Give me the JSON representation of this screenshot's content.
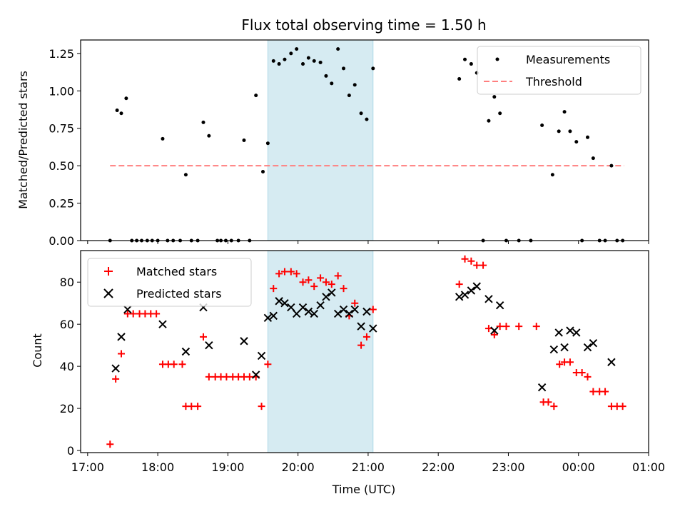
{
  "chart_data": [
    {
      "type": "scatter",
      "title": "Flux total observing time = 1.50 h",
      "xlabel": "",
      "ylabel": "Matched/Predicted stars",
      "x_unit": "hours since 17:00 UTC",
      "xlim": [
        -0.1,
        8.0
      ],
      "ylim": [
        0.0,
        1.34
      ],
      "yticks": [
        0.0,
        0.25,
        0.5,
        0.75,
        1.0,
        1.25
      ],
      "ytick_labels": [
        "0.00",
        "0.25",
        "0.50",
        "0.75",
        "1.00",
        "1.25"
      ],
      "shaded_span": [
        2.57,
        4.07
      ],
      "legend": {
        "placement": "top-right",
        "entries": [
          "Measurements",
          "Threshold"
        ]
      },
      "threshold": {
        "name": "Threshold",
        "y": 0.5,
        "x_range": [
          0.32,
          7.65
        ],
        "color": "#ff7f7f"
      },
      "series": [
        {
          "name": "Measurements",
          "color": "#000000",
          "points": [
            [
              0.32,
              0.0
            ],
            [
              0.42,
              0.87
            ],
            [
              0.48,
              0.85
            ],
            [
              0.55,
              0.95
            ],
            [
              0.63,
              0.0
            ],
            [
              0.7,
              0.0
            ],
            [
              0.77,
              0.0
            ],
            [
              0.85,
              0.0
            ],
            [
              0.92,
              0.0
            ],
            [
              1.0,
              0.0
            ],
            [
              1.07,
              0.68
            ],
            [
              1.14,
              0.0
            ],
            [
              1.22,
              0.0
            ],
            [
              1.32,
              0.0
            ],
            [
              1.4,
              0.44
            ],
            [
              1.48,
              0.0
            ],
            [
              1.57,
              0.0
            ],
            [
              1.65,
              0.79
            ],
            [
              1.73,
              0.7
            ],
            [
              1.85,
              0.0
            ],
            [
              1.9,
              0.0
            ],
            [
              1.97,
              0.0
            ],
            [
              2.05,
              0.0
            ],
            [
              2.15,
              0.0
            ],
            [
              2.23,
              0.67
            ],
            [
              2.31,
              0.0
            ],
            [
              2.4,
              0.97
            ],
            [
              2.5,
              0.46
            ],
            [
              2.57,
              0.65
            ],
            [
              2.65,
              1.2
            ],
            [
              2.73,
              1.18
            ],
            [
              2.81,
              1.21
            ],
            [
              2.9,
              1.25
            ],
            [
              2.98,
              1.28
            ],
            [
              3.07,
              1.18
            ],
            [
              3.15,
              1.22
            ],
            [
              3.23,
              1.2
            ],
            [
              3.32,
              1.19
            ],
            [
              3.4,
              1.1
            ],
            [
              3.48,
              1.05
            ],
            [
              3.57,
              1.28
            ],
            [
              3.65,
              1.15
            ],
            [
              3.73,
              0.97
            ],
            [
              3.81,
              1.04
            ],
            [
              3.9,
              0.85
            ],
            [
              3.98,
              0.81
            ],
            [
              4.07,
              1.15
            ],
            [
              5.3,
              1.08
            ],
            [
              5.38,
              1.21
            ],
            [
              5.47,
              1.18
            ],
            [
              5.55,
              1.12
            ],
            [
              5.64,
              0.0
            ],
            [
              5.72,
              0.8
            ],
            [
              5.8,
              0.96
            ],
            [
              5.88,
              0.85
            ],
            [
              5.97,
              0.0
            ],
            [
              6.15,
              0.0
            ],
            [
              6.32,
              0.0
            ],
            [
              6.48,
              0.77
            ],
            [
              6.63,
              0.44
            ],
            [
              6.72,
              0.73
            ],
            [
              6.8,
              0.86
            ],
            [
              6.88,
              0.73
            ],
            [
              6.97,
              0.66
            ],
            [
              7.05,
              0.0
            ],
            [
              7.13,
              0.69
            ],
            [
              7.21,
              0.55
            ],
            [
              7.3,
              0.0
            ],
            [
              7.38,
              0.0
            ],
            [
              7.47,
              0.5
            ],
            [
              7.55,
              0.0
            ],
            [
              7.63,
              0.0
            ]
          ]
        }
      ]
    },
    {
      "type": "scatter",
      "title": "",
      "xlabel": "Time (UTC)",
      "ylabel": "Count",
      "x_unit": "hours since 17:00 UTC",
      "xlim": [
        -0.1,
        8.0
      ],
      "ylim": [
        -1,
        95
      ],
      "xticks": [
        0,
        1,
        2,
        3,
        4,
        5,
        6,
        7,
        8
      ],
      "xtick_labels": [
        "17:00",
        "18:00",
        "19:00",
        "20:00",
        "21:00",
        "22:00",
        "23:00",
        "00:00",
        "01:00"
      ],
      "yticks": [
        0,
        20,
        40,
        60,
        80
      ],
      "ytick_labels": [
        "0",
        "20",
        "40",
        "60",
        "80"
      ],
      "shaded_span": [
        2.57,
        4.07
      ],
      "legend": {
        "placement": "top-left",
        "entries": [
          "Matched stars",
          "Predicted stars"
        ]
      },
      "series": [
        {
          "name": "Matched stars",
          "marker": "plus",
          "color": "#ff0000",
          "points": [
            [
              0.32,
              3
            ],
            [
              0.4,
              34
            ],
            [
              0.48,
              46
            ],
            [
              0.57,
              65
            ],
            [
              0.65,
              65
            ],
            [
              0.74,
              65
            ],
            [
              0.82,
              65
            ],
            [
              0.9,
              65
            ],
            [
              0.98,
              65
            ],
            [
              1.07,
              41
            ],
            [
              1.15,
              41
            ],
            [
              1.23,
              41
            ],
            [
              1.35,
              41
            ],
            [
              1.4,
              21
            ],
            [
              1.48,
              21
            ],
            [
              1.57,
              21
            ],
            [
              1.65,
              54
            ],
            [
              1.73,
              35
            ],
            [
              1.82,
              35
            ],
            [
              1.9,
              35
            ],
            [
              1.98,
              35
            ],
            [
              2.07,
              35
            ],
            [
              2.15,
              35
            ],
            [
              2.23,
              35
            ],
            [
              2.31,
              35
            ],
            [
              2.4,
              35
            ],
            [
              2.48,
              21
            ],
            [
              2.57,
              41
            ],
            [
              2.65,
              77
            ],
            [
              2.73,
              84
            ],
            [
              2.81,
              85
            ],
            [
              2.9,
              85
            ],
            [
              2.98,
              84
            ],
            [
              3.07,
              80
            ],
            [
              3.15,
              81
            ],
            [
              3.23,
              78
            ],
            [
              3.32,
              82
            ],
            [
              3.4,
              80
            ],
            [
              3.48,
              79
            ],
            [
              3.57,
              83
            ],
            [
              3.65,
              77
            ],
            [
              3.73,
              64
            ],
            [
              3.81,
              70
            ],
            [
              3.9,
              50
            ],
            [
              3.98,
              54
            ],
            [
              4.07,
              67
            ],
            [
              5.3,
              79
            ],
            [
              5.38,
              91
            ],
            [
              5.47,
              90
            ],
            [
              5.55,
              88
            ],
            [
              5.64,
              88
            ],
            [
              5.72,
              58
            ],
            [
              5.8,
              55
            ],
            [
              5.88,
              59
            ],
            [
              5.97,
              59
            ],
            [
              6.15,
              59
            ],
            [
              6.4,
              59
            ],
            [
              6.5,
              23
            ],
            [
              6.57,
              23
            ],
            [
              6.65,
              21
            ],
            [
              6.73,
              41
            ],
            [
              6.8,
              42
            ],
            [
              6.88,
              42
            ],
            [
              6.97,
              37
            ],
            [
              7.05,
              37
            ],
            [
              7.13,
              35
            ],
            [
              7.21,
              28
            ],
            [
              7.3,
              28
            ],
            [
              7.38,
              28
            ],
            [
              7.47,
              21
            ],
            [
              7.55,
              21
            ],
            [
              7.63,
              21
            ]
          ]
        },
        {
          "name": "Predicted stars",
          "marker": "x",
          "color": "#000000",
          "points": [
            [
              0.4,
              39
            ],
            [
              0.48,
              54
            ],
            [
              0.57,
              67
            ],
            [
              1.07,
              60
            ],
            [
              1.4,
              47
            ],
            [
              1.65,
              68
            ],
            [
              1.73,
              50
            ],
            [
              2.23,
              52
            ],
            [
              2.4,
              36
            ],
            [
              2.48,
              45
            ],
            [
              2.57,
              63
            ],
            [
              2.65,
              64
            ],
            [
              2.73,
              71
            ],
            [
              2.81,
              70
            ],
            [
              2.9,
              68
            ],
            [
              2.98,
              65
            ],
            [
              3.07,
              68
            ],
            [
              3.15,
              66
            ],
            [
              3.23,
              65
            ],
            [
              3.32,
              69
            ],
            [
              3.4,
              73
            ],
            [
              3.48,
              75
            ],
            [
              3.57,
              65
            ],
            [
              3.65,
              67
            ],
            [
              3.73,
              65
            ],
            [
              3.81,
              67
            ],
            [
              3.9,
              59
            ],
            [
              3.98,
              66
            ],
            [
              4.07,
              58
            ],
            [
              5.3,
              73
            ],
            [
              5.38,
              74
            ],
            [
              5.47,
              76
            ],
            [
              5.55,
              78
            ],
            [
              5.72,
              72
            ],
            [
              5.8,
              57
            ],
            [
              5.88,
              69
            ],
            [
              6.48,
              30
            ],
            [
              6.65,
              48
            ],
            [
              6.72,
              56
            ],
            [
              6.8,
              49
            ],
            [
              6.88,
              57
            ],
            [
              6.97,
              56
            ],
            [
              7.13,
              49
            ],
            [
              7.21,
              51
            ],
            [
              7.47,
              42
            ]
          ]
        }
      ]
    }
  ]
}
